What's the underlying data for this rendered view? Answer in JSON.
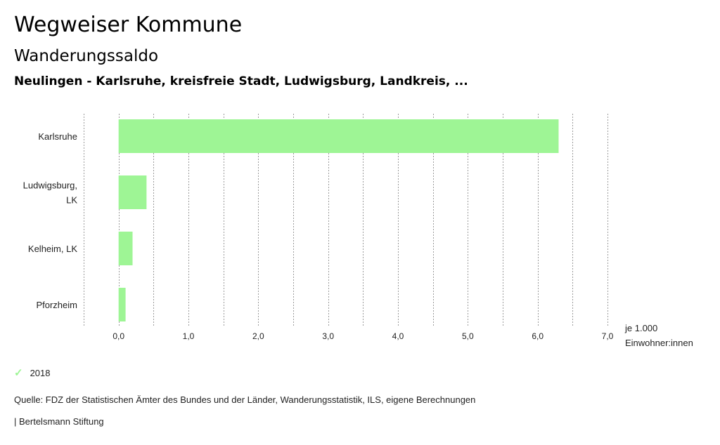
{
  "header": {
    "title": "Wegweiser Kommune",
    "subtitle": "Wanderungssaldo",
    "selection": "Neulingen - Karlsruhe, kreisfreie Stadt, Ludwigsburg, Landkreis, ..."
  },
  "colors": {
    "bar": "#9ef595",
    "grid": "#9a9a9a"
  },
  "chart_data": {
    "type": "bar",
    "orientation": "horizontal",
    "categories": [
      [
        "Karlsruhe"
      ],
      [
        "Ludwigsburg,",
        "LK"
      ],
      [
        "Kelheim, LK"
      ],
      [
        "Pforzheim"
      ]
    ],
    "series": [
      {
        "name": "2018",
        "values": [
          6.3,
          0.4,
          0.2,
          0.1
        ]
      }
    ],
    "xlim": [
      -0.5,
      7.0
    ],
    "ticks": [
      0,
      1,
      2,
      3,
      4,
      5,
      6,
      7
    ],
    "tick_labels": [
      "0,0",
      "1,0",
      "2,0",
      "3,0",
      "4,0",
      "5,0",
      "6,0",
      "7,0"
    ],
    "unit_label": [
      "je 1.000",
      "Einwohner:innen"
    ],
    "grid": true,
    "legend": "bottom-left"
  },
  "legend": {
    "items": [
      {
        "label": "2018",
        "icon": "check-icon"
      }
    ]
  },
  "footer": {
    "source": "Quelle: FDZ der Statistischen Ämter des Bundes und der Länder, Wanderungsstatistik, ILS, eigene Berechnungen",
    "brand": "| Bertelsmann Stiftung"
  }
}
